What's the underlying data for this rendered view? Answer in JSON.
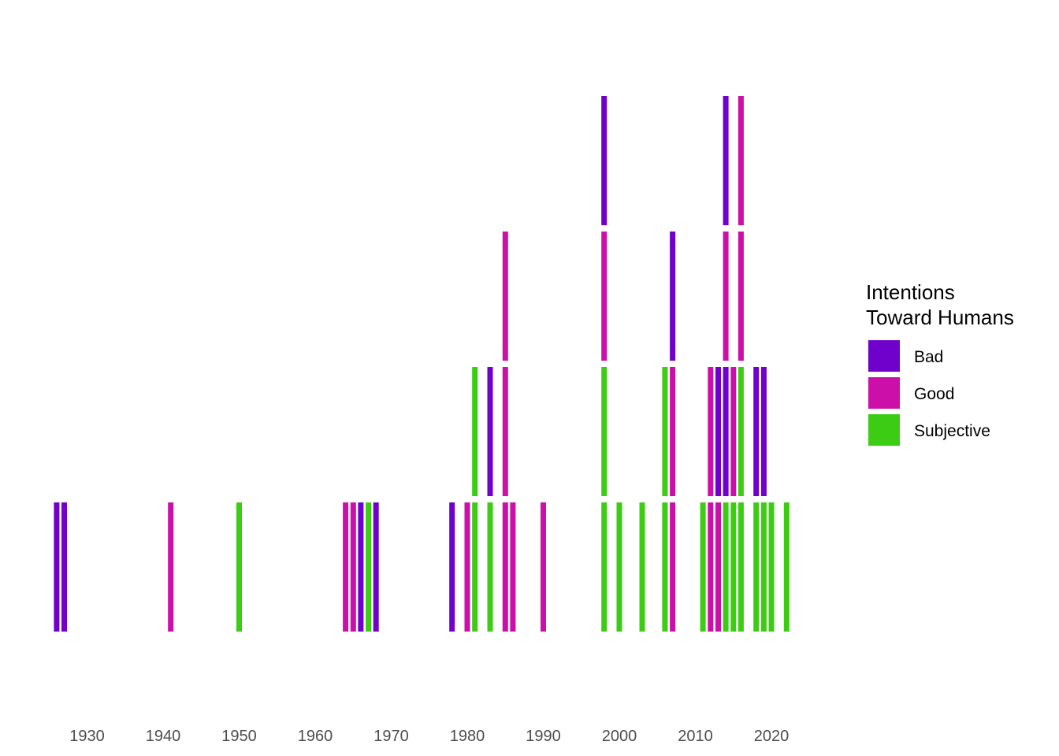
{
  "chart_data": {
    "type": "bar",
    "xlim": [
      1920,
      2025
    ],
    "x_ticks": [
      "1930",
      "1940",
      "1950",
      "1960",
      "1970",
      "1980",
      "1990",
      "2000",
      "2010",
      "2020"
    ],
    "grid": false,
    "legend": {
      "title_lines": [
        "Intentions",
        "Toward Humans"
      ],
      "position": "right",
      "entries": [
        {
          "key": "Bad",
          "label": "Bad",
          "color": "#7000CC"
        },
        {
          "key": "Good",
          "label": "Good",
          "color": "#CC0FA8"
        },
        {
          "key": "Subjective",
          "label": "Subjective",
          "color": "#3CCC14"
        }
      ]
    },
    "points": [
      {
        "year": 1926,
        "stack": [
          {
            "cat": "Bad"
          }
        ]
      },
      {
        "year": 1927,
        "stack": [
          {
            "cat": "Bad"
          }
        ]
      },
      {
        "year": 1941,
        "stack": [
          {
            "cat": "Good"
          }
        ]
      },
      {
        "year": 1950,
        "stack": [
          {
            "cat": "Subjective"
          }
        ]
      },
      {
        "year": 1964,
        "stack": [
          {
            "cat": "Good"
          }
        ]
      },
      {
        "year": 1965,
        "stack": [
          {
            "cat": "Good"
          }
        ]
      },
      {
        "year": 1966,
        "stack": [
          {
            "cat": "Bad"
          }
        ]
      },
      {
        "year": 1967,
        "stack": [
          {
            "cat": "Subjective"
          }
        ]
      },
      {
        "year": 1968,
        "stack": [
          {
            "cat": "Bad"
          }
        ]
      },
      {
        "year": 1978,
        "stack": [
          {
            "cat": "Bad"
          }
        ]
      },
      {
        "year": 1980,
        "stack": [
          {
            "cat": "Good"
          }
        ]
      },
      {
        "year": 1981,
        "stack": [
          {
            "cat": "Subjective"
          },
          {
            "cat": "Subjective"
          }
        ]
      },
      {
        "year": 1983,
        "stack": [
          {
            "cat": "Subjective"
          },
          {
            "cat": "Bad"
          }
        ]
      },
      {
        "year": 1985,
        "stack": [
          {
            "cat": "Good"
          },
          {
            "cat": "Good"
          },
          {
            "cat": "Good"
          }
        ]
      },
      {
        "year": 1986,
        "stack": [
          {
            "cat": "Good"
          }
        ]
      },
      {
        "year": 1990,
        "stack": [
          {
            "cat": "Good"
          }
        ]
      },
      {
        "year": 1998,
        "stack": [
          {
            "cat": "Subjective"
          },
          {
            "cat": "Subjective"
          },
          {
            "cat": "Good"
          },
          {
            "cat": "Bad"
          }
        ]
      },
      {
        "year": 2000,
        "stack": [
          {
            "cat": "Subjective"
          }
        ]
      },
      {
        "year": 2003,
        "stack": [
          {
            "cat": "Subjective"
          }
        ]
      },
      {
        "year": 2006,
        "stack": [
          {
            "cat": "Subjective"
          },
          {
            "cat": "Subjective"
          }
        ]
      },
      {
        "year": 2007,
        "stack": [
          {
            "cat": "Good"
          },
          {
            "cat": "Good"
          },
          {
            "cat": "Bad"
          }
        ]
      },
      {
        "year": 2011,
        "stack": [
          {
            "cat": "Subjective"
          }
        ]
      },
      {
        "year": 2012,
        "stack": [
          {
            "cat": "Good"
          },
          {
            "cat": "Good"
          }
        ]
      },
      {
        "year": 2013,
        "stack": [
          {
            "cat": "Good"
          },
          {
            "cat": "Bad"
          }
        ]
      },
      {
        "year": 2014,
        "stack": [
          {
            "cat": "Subjective"
          },
          {
            "cat": "Bad"
          },
          {
            "cat": "Good"
          },
          {
            "cat": "Bad"
          }
        ]
      },
      {
        "year": 2015,
        "stack": [
          {
            "cat": "Subjective"
          },
          {
            "cat": "Good"
          }
        ]
      },
      {
        "year": 2016,
        "stack": [
          {
            "cat": "Subjective"
          },
          {
            "cat": "Subjective"
          },
          {
            "cat": "Good"
          },
          {
            "cat": "Good"
          }
        ]
      },
      {
        "year": 2018,
        "stack": [
          {
            "cat": "Subjective"
          },
          {
            "cat": "Bad"
          }
        ]
      },
      {
        "year": 2019,
        "stack": [
          {
            "cat": "Subjective"
          },
          {
            "cat": "Bad"
          }
        ]
      },
      {
        "year": 2020,
        "stack": [
          {
            "cat": "Subjective"
          }
        ]
      },
      {
        "year": 2022,
        "stack": [
          {
            "cat": "Subjective"
          }
        ]
      }
    ]
  }
}
